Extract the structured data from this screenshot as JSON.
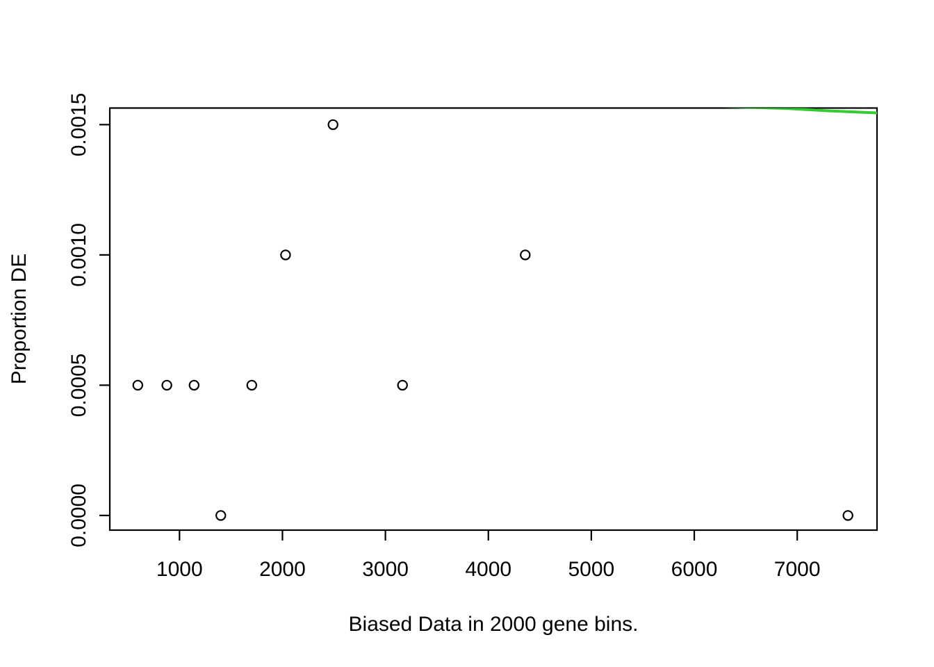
{
  "chart_data": {
    "type": "scatter",
    "title": "",
    "xlabel": "Biased Data in 2000 gene bins.",
    "ylabel": "Proportion DE",
    "x_ticks": [
      1000,
      2000,
      3000,
      4000,
      5000,
      6000,
      7000
    ],
    "x_tick_labels": [
      "1000",
      "2000",
      "3000",
      "4000",
      "5000",
      "6000",
      "7000"
    ],
    "y_ticks": [
      0.0,
      0.0005,
      0.001,
      0.0015
    ],
    "y_tick_labels": [
      "0.0000",
      "0.0005",
      "0.0010",
      "0.0015"
    ],
    "xlim": [
      323,
      7775
    ],
    "ylim": [
      -5.63e-05,
      0.0015637
    ],
    "grid": "off",
    "legend": "none",
    "marker": "open-circle",
    "points": [
      [
        595,
        0.0005
      ],
      [
        877,
        0.0005
      ],
      [
        1142,
        0.0005
      ],
      [
        1401,
        0.0
      ],
      [
        1702,
        0.0005
      ],
      [
        2030,
        0.001
      ],
      [
        2491,
        0.0015
      ],
      [
        3166,
        0.0005
      ],
      [
        4358,
        0.001
      ],
      [
        7493,
        0.0
      ]
    ],
    "smooth_line": {
      "description": "smoother line clipped by top of plot box, visible only at top-right",
      "points": [
        [
          6200,
          0.00157
        ],
        [
          6900,
          0.001562
        ],
        [
          7300,
          0.001553
        ],
        [
          7775,
          0.001545
        ]
      ]
    },
    "colors": {
      "points": "#000000",
      "axis": "#000000",
      "smooth_line": "#33CC33",
      "background": "#FFFFFF"
    }
  }
}
